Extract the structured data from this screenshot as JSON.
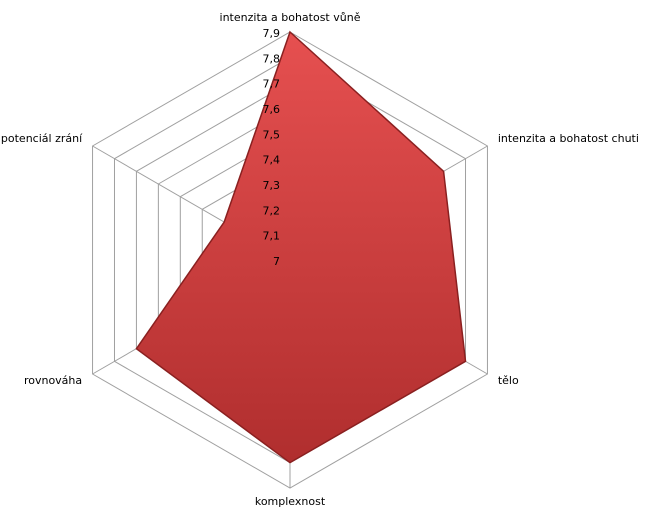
{
  "chart_data": {
    "type": "radar",
    "categories": [
      "intenzita a bohatost vůně",
      "intenzita a bohatost chuti",
      "tělo",
      "komplexnost",
      "rovnováha",
      "potenciál zrání"
    ],
    "series": [
      {
        "name": null,
        "color": "#d94040",
        "values": [
          7.9,
          7.7,
          7.8,
          7.8,
          7.7,
          7.3
        ]
      }
    ],
    "rlim": [
      7,
      7.9
    ],
    "rticks": [
      7,
      {
        "value": 7.1,
        "label": "7,1"
      },
      {
        "value": 7.2,
        "label": "7,2"
      },
      {
        "value": 7.3,
        "label": "7,3"
      },
      {
        "value": 7.4,
        "label": "7,4"
      },
      {
        "value": 7.5,
        "label": "7,5"
      },
      {
        "value": 7.6,
        "label": "7,6"
      },
      {
        "value": 7.7,
        "label": "7,7"
      },
      {
        "value": 7.8,
        "label": "7,8"
      },
      {
        "value": 7.9,
        "label": "7,9"
      }
    ],
    "grid": true
  }
}
